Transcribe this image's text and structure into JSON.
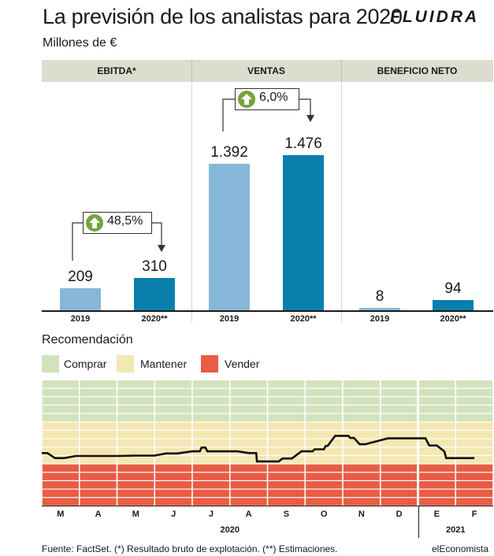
{
  "title": "La previsión de los analistas para 2020",
  "logo": "FLUIDRA",
  "subtitle": "Millones de €",
  "chart_data": [
    {
      "type": "bar",
      "categories": [
        "2019",
        "2020**"
      ],
      "panels": [
        {
          "header": "EBITDA*",
          "values": [
            209,
            310
          ],
          "labels": [
            "209",
            "310"
          ],
          "change": "48,5%"
        },
        {
          "header": "VENTAS",
          "values": [
            1392,
            1476
          ],
          "labels": [
            "1.392",
            "1.476"
          ],
          "change": "6,0%"
        },
        {
          "header": "BENEFICIO NETO",
          "values": [
            8,
            94
          ],
          "labels": [
            "8",
            "94"
          ],
          "change": ""
        }
      ],
      "series_colors": {
        "2019": "#87b7d8",
        "2020**": "#0a7fae"
      },
      "ylim": [
        0,
        1600
      ]
    },
    {
      "type": "line",
      "title": "Recomendación",
      "legend": [
        {
          "label": "Comprar",
          "color": "#d2e2bd"
        },
        {
          "label": "Mantener",
          "color": "#f4e7b2"
        },
        {
          "label": "Vender",
          "color": "#e95c45"
        }
      ],
      "months": [
        "M",
        "A",
        "M",
        "J",
        "J",
        "A",
        "S",
        "O",
        "N",
        "D",
        "E",
        "F"
      ],
      "years": [
        {
          "label": "2020",
          "span": [
            0,
            9
          ]
        },
        {
          "label": "2021",
          "span": [
            10,
            11
          ]
        }
      ],
      "scale_levels": 15,
      "series": [
        {
          "x": [
            0,
            0.15,
            0.35,
            0.6,
            0.9,
            1.5,
            2,
            2.5,
            3,
            3.3,
            3.6,
            4,
            4.2,
            4.25,
            4.35,
            4.4,
            4.6,
            4.85,
            5.2,
            5.5,
            5.7,
            5.72,
            6.3,
            6.4,
            6.65,
            6.9,
            7.2,
            7.25,
            7.5,
            7.55,
            7.6,
            7.8,
            8.15,
            8.2,
            8.3,
            8.45,
            8.6,
            9.2,
            10.2,
            10.3,
            10.5,
            10.7,
            10.75,
            11,
            11.3,
            11.5
          ],
          "y": [
            6.35,
            6.35,
            5.75,
            5.75,
            6.0,
            6.0,
            6.0,
            6.05,
            6.05,
            6.3,
            6.3,
            6.55,
            6.55,
            7.0,
            7.0,
            6.55,
            6.55,
            6.55,
            6.55,
            6.35,
            6.35,
            5.35,
            5.35,
            5.7,
            5.7,
            6.55,
            6.55,
            6.8,
            6.8,
            7.2,
            7.2,
            8.4,
            8.4,
            8.15,
            8.15,
            7.4,
            7.4,
            8.1,
            8.1,
            7.25,
            7.25,
            6.55,
            5.75,
            5.75,
            5.75,
            5.75
          ]
        }
      ]
    }
  ],
  "source": "Fuente: FactSet. (*) Resultado bruto de explotación. (**) Estimaciones.",
  "brand": "elEconomista"
}
